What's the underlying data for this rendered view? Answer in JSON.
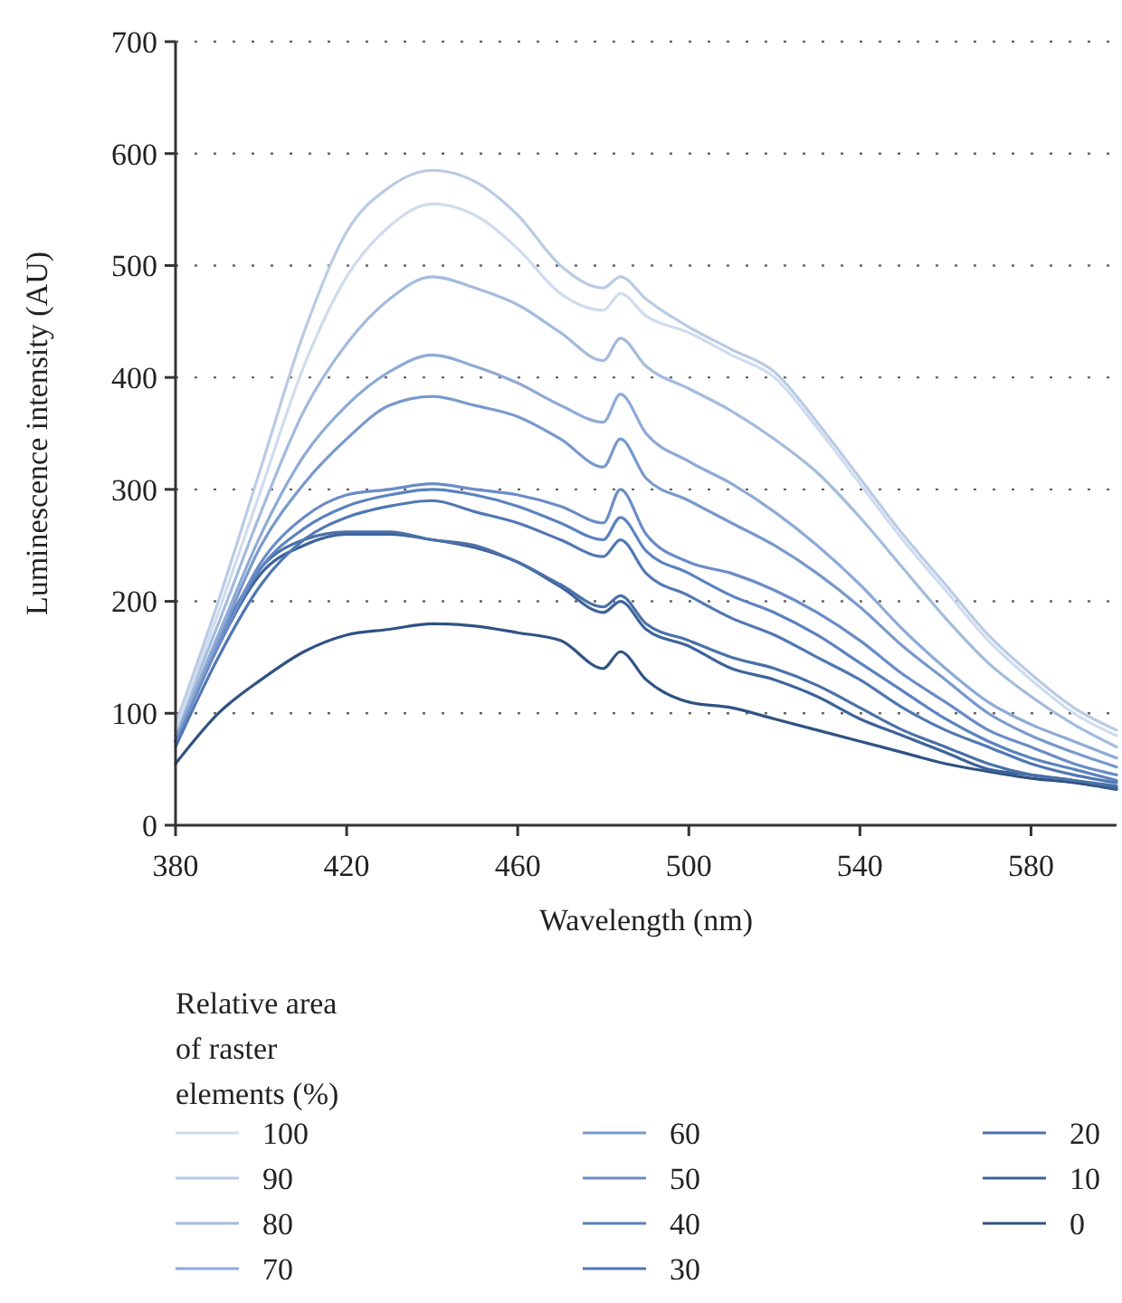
{
  "chart_data": {
    "type": "line",
    "xlabel": "Wavelength (nm)",
    "ylabel": "Luminescence intensity (AU)",
    "legend_title": "Relative area of raster elements (%)",
    "legend": "bottom",
    "grid": "y",
    "marker": "none",
    "line_style": "solid",
    "x": [
      380,
      390,
      400,
      410,
      420,
      430,
      440,
      450,
      460,
      470,
      480,
      484,
      490,
      500,
      510,
      520,
      530,
      540,
      550,
      560,
      570,
      580,
      590,
      600
    ],
    "xlim": [
      380,
      600
    ],
    "xticks": [
      380,
      420,
      460,
      500,
      540,
      580
    ],
    "ylim": [
      0,
      700
    ],
    "yticks": [
      0,
      100,
      200,
      300,
      400,
      500,
      600,
      700
    ],
    "series": [
      {
        "name": "100",
        "color": "#cfdcee",
        "values": [
          85,
          190,
          300,
          410,
          490,
          535,
          555,
          545,
          515,
          475,
          460,
          475,
          455,
          440,
          420,
          400,
          355,
          305,
          255,
          210,
          165,
          130,
          100,
          80
        ]
      },
      {
        "name": "90",
        "color": "#b9cbe4",
        "values": [
          90,
          200,
          320,
          440,
          530,
          570,
          585,
          575,
          545,
          500,
          480,
          490,
          470,
          445,
          425,
          405,
          360,
          310,
          260,
          215,
          170,
          135,
          105,
          85
        ]
      },
      {
        "name": "80",
        "color": "#a3bbdd",
        "values": [
          85,
          180,
          280,
          370,
          430,
          470,
          490,
          480,
          465,
          440,
          415,
          435,
          410,
          390,
          370,
          345,
          315,
          275,
          230,
          185,
          145,
          115,
          90,
          70
        ]
      },
      {
        "name": "70",
        "color": "#8eaad6",
        "values": [
          80,
          170,
          260,
          330,
          375,
          405,
          420,
          410,
          395,
          375,
          360,
          385,
          350,
          325,
          305,
          280,
          250,
          215,
          175,
          140,
          110,
          90,
          75,
          60
        ]
      },
      {
        "name": "60",
        "color": "#7899cc",
        "values": [
          80,
          165,
          250,
          305,
          345,
          375,
          383,
          375,
          365,
          345,
          320,
          345,
          310,
          290,
          270,
          250,
          225,
          195,
          160,
          130,
          100,
          80,
          65,
          52
        ]
      },
      {
        "name": "50",
        "color": "#6a8cc7",
        "values": [
          75,
          160,
          235,
          275,
          295,
          300,
          305,
          300,
          295,
          285,
          270,
          300,
          260,
          235,
          225,
          210,
          190,
          165,
          135,
          110,
          85,
          70,
          55,
          45
        ]
      },
      {
        "name": "40",
        "color": "#5b82c0",
        "values": [
          75,
          160,
          230,
          265,
          285,
          295,
          300,
          295,
          285,
          270,
          255,
          275,
          245,
          225,
          205,
          190,
          170,
          145,
          120,
          95,
          75,
          60,
          50,
          40
        ]
      },
      {
        "name": "30",
        "color": "#5077b4",
        "values": [
          70,
          150,
          215,
          255,
          275,
          285,
          290,
          280,
          270,
          255,
          240,
          255,
          225,
          205,
          185,
          170,
          150,
          130,
          105,
          85,
          70,
          55,
          45,
          38
        ]
      },
      {
        "name": "20",
        "color": "#4a70a8",
        "values": [
          75,
          165,
          230,
          255,
          262,
          262,
          255,
          250,
          235,
          215,
          195,
          205,
          180,
          165,
          150,
          140,
          125,
          105,
          85,
          70,
          55,
          45,
          40,
          35
        ]
      },
      {
        "name": "10",
        "color": "#3d6399",
        "values": [
          75,
          160,
          225,
          250,
          260,
          260,
          255,
          248,
          235,
          213,
          190,
          200,
          175,
          160,
          140,
          130,
          115,
          95,
          80,
          65,
          50,
          45,
          40,
          33
        ]
      },
      {
        "name": "0",
        "color": "#2f5283",
        "values": [
          55,
          100,
          130,
          155,
          170,
          175,
          180,
          178,
          172,
          165,
          140,
          155,
          130,
          110,
          105,
          95,
          85,
          75,
          65,
          55,
          48,
          42,
          38,
          32
        ]
      }
    ]
  }
}
